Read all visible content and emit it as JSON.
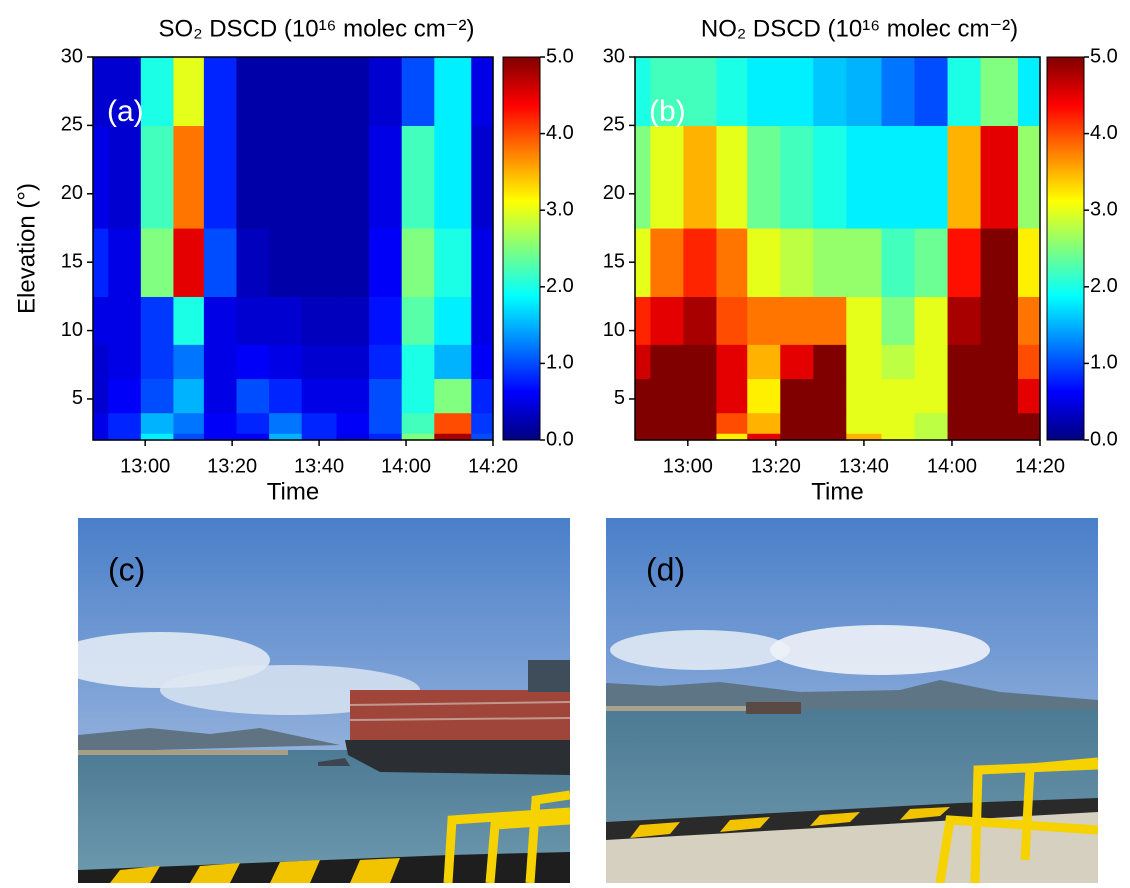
{
  "chart_data": [
    {
      "type": "heatmap",
      "title": "SO₂ DSCD (10¹⁶ molec cm⁻²)",
      "panel_label": "(a)",
      "x_label": "Time",
      "y_label": "Elevation (°)",
      "colormap": "jet",
      "zlim": [
        0,
        5
      ],
      "zticks": [
        {
          "value": 0,
          "label": "0.0"
        },
        {
          "value": 1,
          "label": "1.0"
        },
        {
          "value": 2,
          "label": "2.0"
        },
        {
          "value": 3,
          "label": "3.0"
        },
        {
          "value": 4,
          "label": "4.0"
        },
        {
          "value": 5,
          "label": "5.0"
        }
      ],
      "xlim": [
        "12:48",
        "14:20"
      ],
      "xticks": [
        "13:00",
        "13:20",
        "13:40",
        "14:00",
        "14:20"
      ],
      "ylim": [
        2,
        30
      ],
      "yticks": [
        5,
        10,
        15,
        20,
        25,
        30
      ],
      "x": [
        "12:48",
        "12:55",
        "13:03",
        "13:10",
        "13:17",
        "13:25",
        "13:32",
        "13:40",
        "13:48",
        "13:55",
        "14:03",
        "14:10",
        "14:20"
      ],
      "y": [
        2,
        3,
        5,
        8,
        10,
        15,
        20,
        30
      ],
      "z": [
        [
          0.5,
          0.8,
          1.8,
          1.0,
          0.6,
          0.6,
          1.5,
          0.8,
          0.5,
          0.8,
          2.5,
          4.8,
          1.0
        ],
        [
          0.5,
          0.8,
          1.5,
          1.2,
          0.6,
          0.8,
          1.2,
          0.8,
          0.6,
          1.0,
          2.2,
          4.0,
          0.9
        ],
        [
          0.4,
          0.6,
          1.0,
          1.5,
          0.5,
          1.0,
          0.8,
          0.5,
          0.5,
          1.0,
          2.0,
          2.5,
          0.8
        ],
        [
          0.4,
          0.5,
          0.9,
          1.2,
          0.5,
          0.6,
          0.5,
          0.4,
          0.4,
          0.8,
          2.0,
          1.5,
          0.6
        ],
        [
          0.5,
          0.5,
          0.9,
          2.0,
          0.5,
          0.4,
          0.4,
          0.3,
          0.3,
          0.7,
          2.3,
          1.8,
          0.5
        ],
        [
          0.8,
          0.5,
          2.5,
          4.5,
          1.0,
          0.3,
          0.2,
          0.2,
          0.2,
          0.6,
          2.5,
          2.0,
          0.5
        ],
        [
          0.5,
          0.4,
          2.2,
          3.8,
          0.8,
          0.2,
          0.2,
          0.2,
          0.2,
          0.5,
          2.2,
          1.8,
          0.4
        ],
        [
          0.4,
          0.4,
          2.0,
          3.0,
          0.8,
          0.2,
          0.2,
          0.2,
          0.2,
          0.4,
          1.0,
          1.8,
          0.5
        ]
      ]
    },
    {
      "type": "heatmap",
      "title": "NO₂ DSCD (10¹⁶ molec cm⁻²)",
      "panel_label": "(b)",
      "x_label": "Time",
      "colormap": "jet",
      "zlim": [
        0,
        5
      ],
      "zticks": [
        {
          "value": 0,
          "label": "0.0"
        },
        {
          "value": 1,
          "label": "1.0"
        },
        {
          "value": 2,
          "label": "2.0"
        },
        {
          "value": 3,
          "label": "3.0"
        },
        {
          "value": 4,
          "label": "4.0"
        },
        {
          "value": 5,
          "label": "5.0"
        }
      ],
      "xlim": [
        "12:48",
        "14:20"
      ],
      "xticks": [
        "13:00",
        "13:20",
        "13:40",
        "14:00",
        "14:20"
      ],
      "ylim": [
        2,
        30
      ],
      "yticks": [
        5,
        10,
        15,
        20,
        25,
        30
      ],
      "x": [
        "12:48",
        "12:55",
        "13:03",
        "13:10",
        "13:17",
        "13:25",
        "13:32",
        "13:40",
        "13:48",
        "13:55",
        "14:03",
        "14:10",
        "14:20"
      ],
      "y": [
        2,
        3,
        5,
        8,
        10,
        15,
        20,
        30
      ],
      "z": [
        [
          5,
          5,
          5,
          3.2,
          4.5,
          5,
          5,
          3.5,
          3.0,
          2.8,
          5,
          5,
          5
        ],
        [
          5,
          5,
          5,
          4.0,
          3.5,
          5,
          5,
          3.0,
          3.0,
          2.8,
          5,
          5,
          5
        ],
        [
          5,
          5,
          5,
          4.5,
          3.2,
          5,
          5,
          3.0,
          3.0,
          3.0,
          5,
          5,
          4.5
        ],
        [
          4.6,
          5,
          5,
          4.5,
          3.5,
          4.5,
          5,
          3.0,
          2.8,
          3.0,
          5,
          5,
          4.0
        ],
        [
          4.2,
          4.5,
          4.8,
          4.0,
          3.8,
          3.8,
          3.8,
          3.0,
          2.5,
          3.0,
          4.8,
          5,
          3.8
        ],
        [
          3.0,
          3.8,
          4.2,
          3.8,
          3.0,
          2.8,
          2.6,
          2.6,
          2.2,
          2.4,
          4.3,
          5,
          3.2
        ],
        [
          2.5,
          3.0,
          3.5,
          3.0,
          2.4,
          2.2,
          2.0,
          1.8,
          1.8,
          1.8,
          3.5,
          4.5,
          2.6
        ],
        [
          2.0,
          2.2,
          2.2,
          2.0,
          1.8,
          1.8,
          1.6,
          1.5,
          1.2,
          1.0,
          2.0,
          2.5,
          1.8
        ]
      ]
    }
  ],
  "photos": [
    {
      "label": "(c)"
    },
    {
      "label": "(d)"
    }
  ]
}
